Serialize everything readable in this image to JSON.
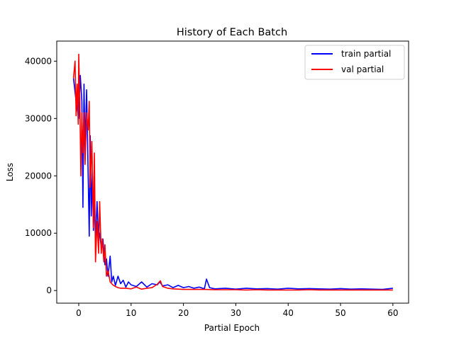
{
  "chart_data": {
    "type": "line",
    "title": "History of Each Batch",
    "xlabel": "Partial Epoch",
    "ylabel": "Loss",
    "xlim": [
      -4.2,
      63
    ],
    "ylim": [
      -2200,
      43500
    ],
    "xticks": [
      0,
      10,
      20,
      30,
      40,
      50,
      60
    ],
    "yticks": [
      0,
      10000,
      20000,
      30000,
      40000
    ],
    "grid": false,
    "legend_position": "top-right",
    "series": [
      {
        "name": "train partial",
        "color": "#0000ff",
        "x": [
          -1.0,
          -0.5,
          0.0,
          0.3,
          0.6,
          0.8,
          1.0,
          1.2,
          1.5,
          1.8,
          2.0,
          2.2,
          2.4,
          2.6,
          2.8,
          3.0,
          3.2,
          3.5,
          3.8,
          4.0,
          4.3,
          4.6,
          5.0,
          5.3,
          5.6,
          6.0,
          6.3,
          6.6,
          7.0,
          7.5,
          8.0,
          8.5,
          9.0,
          9.5,
          10.0,
          11.0,
          12.0,
          13.0,
          14.0,
          15.0,
          15.5,
          16.0,
          17.0,
          18.0,
          19.0,
          20.0,
          21.0,
          22.0,
          23.0,
          24.0,
          24.4,
          25.0,
          26.0,
          28.0,
          30.0,
          32.0,
          34.0,
          36.0,
          38.0,
          40.0,
          42.0,
          44.0,
          46.0,
          48.0,
          50.0,
          52.0,
          54.0,
          56.0,
          58.0,
          60.0
        ],
        "values": [
          37000,
          33000,
          30000,
          37500,
          33000,
          14500,
          36000,
          25000,
          35000,
          20000,
          9500,
          27000,
          13000,
          21000,
          10500,
          16000,
          8500,
          15500,
          9000,
          10000,
          7500,
          9000,
          4500,
          5500,
          2500,
          6000,
          1500,
          2500,
          900,
          2500,
          1200,
          1800,
          600,
          1500,
          1000,
          700,
          1500,
          600,
          1200,
          1000,
          1500,
          800,
          1000,
          500,
          900,
          500,
          700,
          400,
          600,
          300,
          2000,
          500,
          300,
          400,
          250,
          400,
          300,
          350,
          250,
          400,
          300,
          350,
          300,
          250,
          350,
          250,
          300,
          250,
          200,
          400
        ]
      },
      {
        "name": "val partial",
        "color": "#ff0000",
        "x": [
          -1.0,
          -0.7,
          -0.5,
          -0.3,
          -0.1,
          0.0,
          0.2,
          0.4,
          0.6,
          0.8,
          1.0,
          1.2,
          1.5,
          1.8,
          2.0,
          2.2,
          2.5,
          2.8,
          3.0,
          3.2,
          3.5,
          3.8,
          4.0,
          4.3,
          4.5,
          4.8,
          5.0,
          5.3,
          5.6,
          6.0,
          6.5,
          7.0,
          7.5,
          8.0,
          9.0,
          10.0,
          11.0,
          12.0,
          13.0,
          14.0,
          15.0,
          15.6,
          16.0,
          17.0,
          18.0,
          19.0,
          20.0,
          22.0,
          24.0,
          26.0,
          28.0,
          30.0,
          32.0,
          34.0,
          36.0,
          38.0,
          40.0,
          42.0,
          44.0,
          46.0,
          48.0,
          50.0,
          52.0,
          54.0,
          56.0,
          58.0,
          60.0
        ],
        "values": [
          37000,
          40000,
          30500,
          36000,
          29000,
          41200,
          33000,
          20000,
          31000,
          24000,
          31000,
          22000,
          31000,
          28000,
          33000,
          18000,
          26000,
          11000,
          24000,
          5000,
          12000,
          6500,
          15500,
          6500,
          9000,
          5000,
          8000,
          2500,
          3500,
          1500,
          1000,
          700,
          500,
          400,
          400,
          300,
          600,
          250,
          400,
          500,
          1100,
          1700,
          700,
          400,
          300,
          250,
          200,
          200,
          200,
          150,
          150,
          150,
          100,
          150,
          100,
          100,
          100,
          100,
          150,
          100,
          100,
          100,
          100,
          100,
          100,
          100,
          100
        ]
      }
    ]
  }
}
